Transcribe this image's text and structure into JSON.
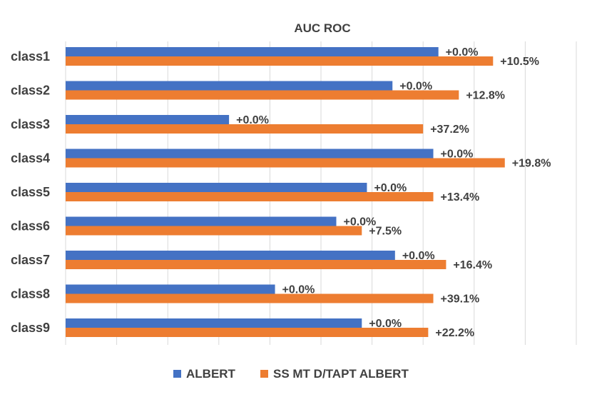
{
  "chart_data": {
    "type": "bar",
    "orientation": "horizontal",
    "title": "AUC ROC",
    "categories": [
      "class1",
      "class2",
      "class3",
      "class4",
      "class5",
      "class6",
      "class7",
      "class8",
      "class9"
    ],
    "series": [
      {
        "name": "ALBERT",
        "color": "#4472c4",
        "values": [
          0.73,
          0.64,
          0.32,
          0.72,
          0.59,
          0.53,
          0.645,
          0.41,
          0.58
        ],
        "labels": [
          "+0.0%",
          "+0.0%",
          "+0.0%",
          "+0.0%",
          "+0.0%",
          "+0.0%",
          "+0.0%",
          "+0.0%",
          "+0.0%"
        ]
      },
      {
        "name": "SS MT D/TAPT ALBERT",
        "color": "#ed7d31",
        "values": [
          0.837,
          0.77,
          0.7,
          0.86,
          0.72,
          0.58,
          0.745,
          0.72,
          0.71
        ],
        "labels": [
          "+10.5%",
          "+12.8%",
          "+37.2%",
          "+19.8%",
          "+13.4%",
          "+7.5%",
          "+16.4%",
          "+39.1%",
          "+22.2%"
        ]
      }
    ],
    "xlim": [
      0,
      1.0
    ],
    "grid": true,
    "legend_position": "bottom"
  }
}
